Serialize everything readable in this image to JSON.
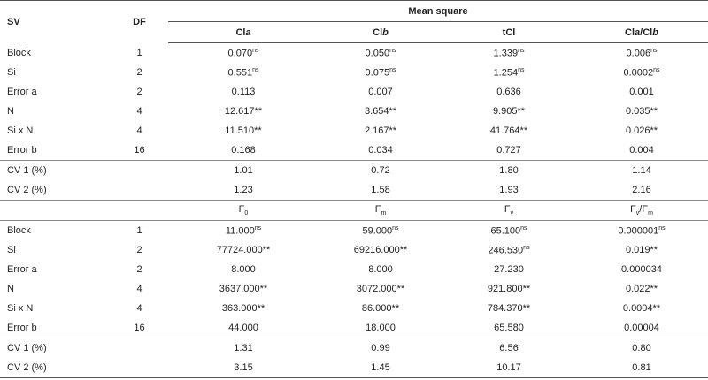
{
  "table": {
    "header": {
      "sv": "SV",
      "df": "DF",
      "group": "Mean square",
      "columns": [
        [
          {
            "text": "Cl"
          },
          {
            "text": "a",
            "style": "i"
          }
        ],
        [
          {
            "text": "Cl"
          },
          {
            "text": "b",
            "style": "i"
          }
        ],
        [
          {
            "text": "tCl"
          }
        ],
        [
          {
            "text": "Cl"
          },
          {
            "text": "a",
            "style": "i"
          },
          {
            "text": "/Cl"
          },
          {
            "text": "b",
            "style": "i"
          }
        ]
      ]
    },
    "rows": [
      [
        "Block",
        "1",
        [
          {
            "text": "0.070"
          },
          {
            "text": "ns",
            "style": "sup"
          }
        ],
        [
          {
            "text": "0.050"
          },
          {
            "text": "ns",
            "style": "sup"
          }
        ],
        [
          {
            "text": "1.339"
          },
          {
            "text": "ns",
            "style": "sup"
          }
        ],
        [
          {
            "text": "0.006"
          },
          {
            "text": "ns",
            "style": "sup"
          }
        ]
      ],
      [
        "Si",
        "2",
        [
          {
            "text": "0.551"
          },
          {
            "text": "ns",
            "style": "sup"
          }
        ],
        [
          {
            "text": "0.075"
          },
          {
            "text": "ns",
            "style": "sup"
          }
        ],
        [
          {
            "text": "1.254"
          },
          {
            "text": "ns",
            "style": "sup"
          }
        ],
        [
          {
            "text": "0.0002"
          },
          {
            "text": "ns",
            "style": "sup"
          }
        ]
      ],
      [
        "Error a",
        "2",
        "0.113",
        "0.007",
        "0.636",
        "0.001"
      ],
      [
        "N",
        "4",
        "12.617**",
        "3.654**",
        "9.905**",
        "0.035**"
      ],
      [
        "Si x N",
        "4",
        "11.510**",
        "2.167**",
        "41.764**",
        "0.026**"
      ],
      [
        "Error b",
        "16",
        "0.168",
        "0.034",
        "0.727",
        "0.004"
      ],
      [
        "CV 1 (%)",
        null,
        "1.01",
        "0.72",
        "1.80",
        "1.14"
      ],
      [
        "CV 2 (%)",
        null,
        "1.23",
        "1.58",
        "1.93",
        "2.16"
      ],
      [
        null,
        null,
        [
          {
            "text": "F"
          },
          {
            "text": "0",
            "style": "sub"
          }
        ],
        [
          {
            "text": "F"
          },
          {
            "text": "m",
            "style": "sub"
          }
        ],
        [
          {
            "text": "F"
          },
          {
            "text": "v",
            "style": "sub"
          }
        ],
        [
          {
            "text": "F"
          },
          {
            "text": "v",
            "style": "sub"
          },
          {
            "text": "/F"
          },
          {
            "text": "m",
            "style": "sub"
          }
        ]
      ],
      [
        "Block",
        "1",
        [
          {
            "text": "11.000"
          },
          {
            "text": "ns",
            "style": "sup"
          }
        ],
        [
          {
            "text": "59.000"
          },
          {
            "text": "ns",
            "style": "sup"
          }
        ],
        [
          {
            "text": "65.100"
          },
          {
            "text": "ns",
            "style": "sup"
          }
        ],
        [
          {
            "text": "0.000001"
          },
          {
            "text": "ns",
            "style": "sup"
          }
        ]
      ],
      [
        "Si",
        "2",
        "77724.000**",
        "69216.000**",
        [
          {
            "text": "246.530"
          },
          {
            "text": "ns",
            "style": "sup"
          }
        ],
        "0.019**"
      ],
      [
        "Error a",
        "2",
        "8.000",
        "8.000",
        "27.230",
        "0.000034"
      ],
      [
        "N",
        "4",
        "3637.000**",
        "3072.000**",
        "921.800**",
        "0.022**"
      ],
      [
        "Si x N",
        "4",
        "363.000**",
        "86.000**",
        "784.370**",
        "0.0004**"
      ],
      [
        "Error b",
        "16",
        "44.000",
        "18.000",
        "65.580",
        "0.00004"
      ],
      [
        "CV 1 (%)",
        null,
        "1.31",
        "0.99",
        "6.56",
        "0.80"
      ],
      [
        "CV 2 (%)",
        null,
        "3.15",
        "1.45",
        "10.17",
        "0.81"
      ]
    ]
  }
}
